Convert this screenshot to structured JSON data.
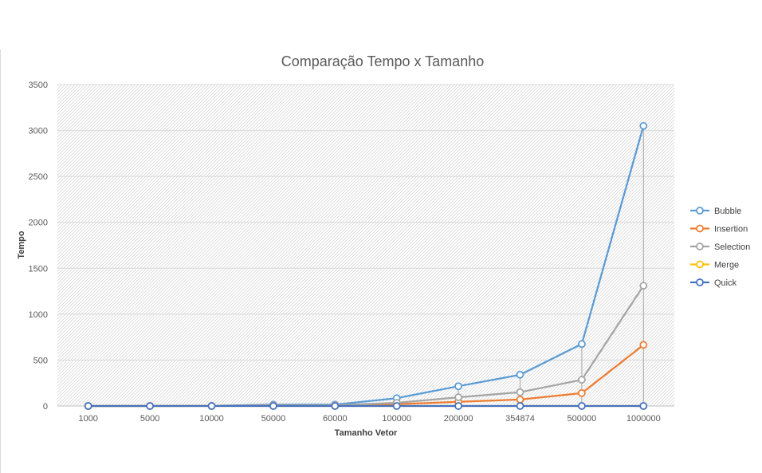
{
  "chart_data": {
    "type": "line",
    "title": "Comparação Tempo x Tamanho",
    "xlabel": "Tamanho Vetor",
    "ylabel": "Tempo",
    "categories": [
      "1000",
      "5000",
      "10000",
      "50000",
      "60000",
      "100000",
      "200000",
      "354874",
      "500000",
      "1000000"
    ],
    "ylim": [
      0,
      3500
    ],
    "yticks": [
      "0",
      "500",
      "1000",
      "1500",
      "2000",
      "2500",
      "3000",
      "3500"
    ],
    "grid": "hatched plot area",
    "legend_position": "right",
    "drop_lines": true,
    "series": [
      {
        "name": "Bubble",
        "color": "#5b9bd5",
        "values": [
          0,
          0.5,
          2,
          15,
          15,
          85,
          215,
          340,
          675,
          3050
        ]
      },
      {
        "name": "Insertion",
        "color": "#ed7d31",
        "values": [
          0,
          0.3,
          1,
          5,
          5,
          20,
          45,
          70,
          140,
          665
        ]
      },
      {
        "name": "Selection",
        "color": "#a5a5a5",
        "values": [
          0,
          0.3,
          1,
          7,
          8,
          35,
          95,
          150,
          285,
          1310
        ]
      },
      {
        "name": "Merge",
        "color": "#ffc000",
        "values": [
          0,
          0,
          0,
          0,
          0,
          0,
          0.1,
          0.1,
          0.2,
          0.3
        ]
      },
      {
        "name": "Quick",
        "color": "#4472c4",
        "values": [
          0,
          0,
          0,
          0,
          0,
          0,
          0.1,
          0.1,
          0.2,
          0.3
        ]
      }
    ]
  }
}
